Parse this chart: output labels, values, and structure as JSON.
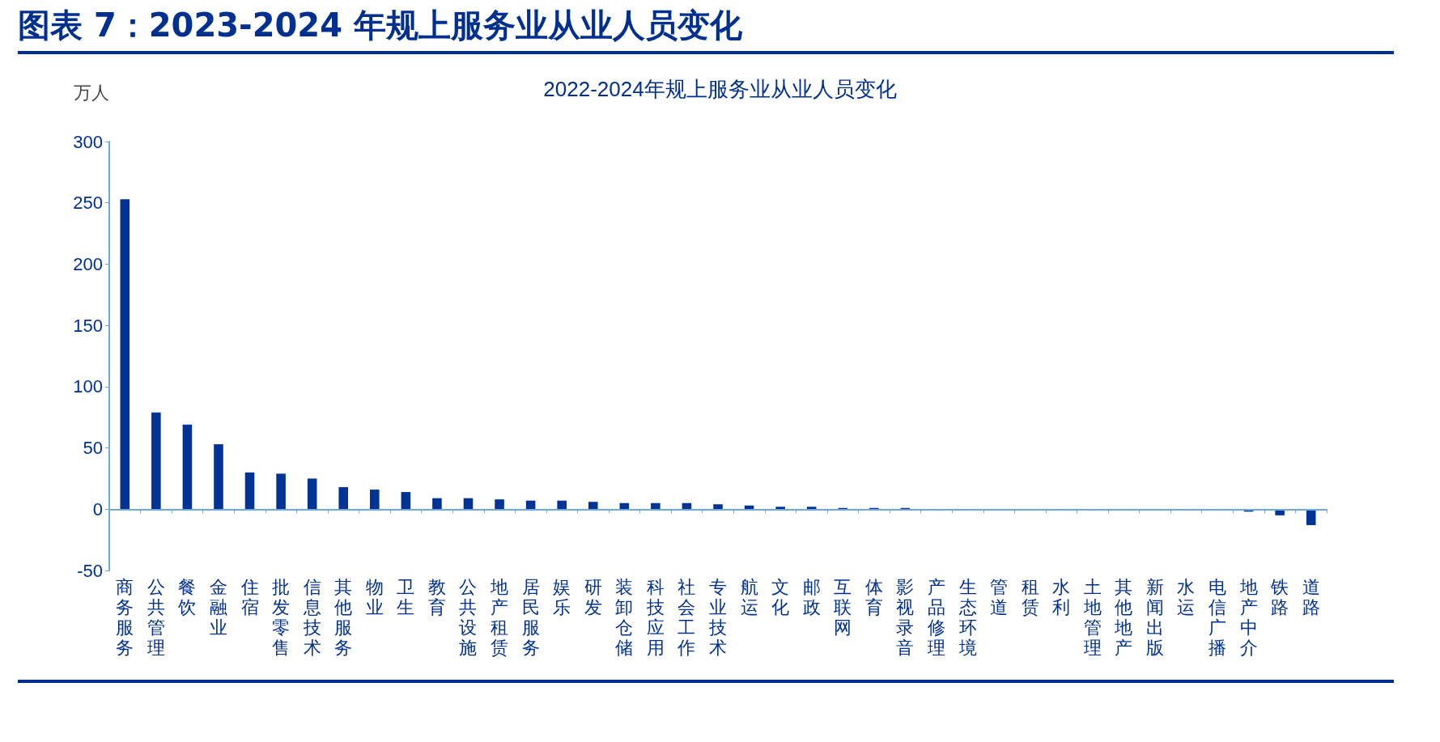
{
  "chart_data": {
    "type": "bar",
    "title": "图表 7：2023-2024 年规上服务业从业人员变化",
    "subtitle": "2022-2024年规上服务业从业人员变化",
    "ylabel": "万人",
    "categories": [
      "商务服务",
      "公共管理",
      "餐饮",
      "金融业",
      "住宿",
      "批发零售",
      "信息技术",
      "其他服务",
      "物业",
      "卫生",
      "教育",
      "公共设施",
      "地产租赁",
      "居民服务",
      "娱乐",
      "研发",
      "装卸仓储",
      "科技应用",
      "社会工作",
      "专业技术",
      "航运",
      "文化",
      "邮政",
      "互联网",
      "体育",
      "影视录音",
      "产品修理",
      "生态环境",
      "管道",
      "租赁",
      "水利",
      "土地管理",
      "其他地产",
      "新闻出版",
      "水运",
      "电信广播",
      "地产中介",
      "铁路",
      "道路"
    ],
    "values": [
      253,
      79,
      69,
      53,
      30,
      29,
      25,
      18,
      16,
      14,
      9,
      9,
      8,
      7,
      7,
      6,
      5,
      5,
      5,
      4,
      3,
      2,
      2,
      1,
      1,
      1,
      0,
      0,
      0,
      0,
      0,
      0,
      0,
      0,
      0,
      0,
      -2,
      -5,
      -13
    ],
    "color": "#003393",
    "ylim": [
      -50,
      300
    ],
    "yticks": [
      -50,
      0,
      50,
      100,
      150,
      200,
      250,
      300
    ],
    "grid": false,
    "ref_lines": [
      {
        "axis": "y",
        "value": 0,
        "color": "#6fa8dc"
      }
    ]
  }
}
